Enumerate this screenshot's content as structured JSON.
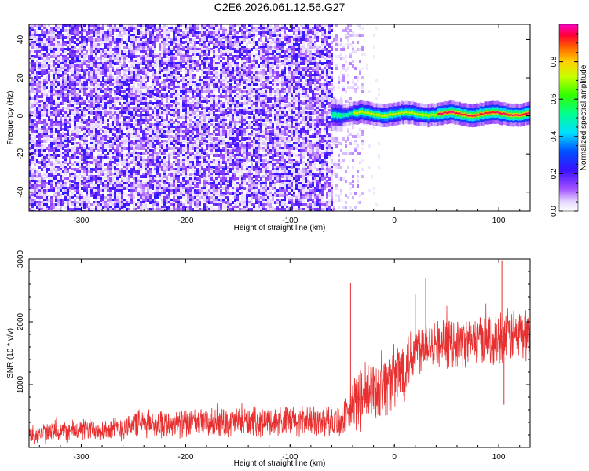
{
  "title": "C2E6.2026.061.12.56.G27",
  "chart_data": [
    {
      "type": "heatmap",
      "title": "C2E6.2026.061.12.56.G27",
      "xlabel": "Height of straight line (km)",
      "ylabel": "Frequency (Hz)",
      "xlim": [
        -350,
        130
      ],
      "ylim": [
        -50,
        48
      ],
      "x_ticks": [
        -300,
        -200,
        -100,
        0,
        100
      ],
      "y_ticks": [
        -40,
        -20,
        0,
        20,
        40
      ],
      "colorbar": {
        "label": "Normalized spectral amplitude",
        "range": [
          0,
          1
        ],
        "ticks": [
          "0.0",
          "0.2",
          "0.4",
          "0.6",
          "0.8"
        ],
        "colormap": "rainbow (white-violet-blue-cyan-green-yellow-red)"
      },
      "regions": [
        {
          "x_range": [
            -350,
            -60
          ],
          "description": "broadband noise, amplitude ~0.05-0.3 across all frequencies"
        },
        {
          "x_range": [
            -60,
            -30
          ],
          "description": "sparse noise, amplitude ~0.02-0.1"
        },
        {
          "x_range": [
            -60,
            130
          ],
          "center_frequency_hz": 1,
          "description": "narrow carrier line near 0-2 Hz, peak amplitude ~1.0"
        }
      ],
      "grid": false,
      "legend": "colorbar right"
    },
    {
      "type": "line",
      "xlabel": "Height of straight line (km)",
      "ylabel": "SNR (10 * v/v)",
      "xlim": [
        -350,
        130
      ],
      "ylim": [
        0,
        3000
      ],
      "x_ticks": [
        -300,
        -200,
        -100,
        0,
        100
      ],
      "y_ticks": [
        1000,
        2000,
        3000
      ],
      "color": "#e83030",
      "series": [
        {
          "x": [
            -350,
            -330,
            -300,
            -260,
            -250,
            -200,
            -150,
            -100,
            -60,
            -45,
            -40,
            -20,
            0,
            10,
            20,
            30,
            50,
            80,
            100,
            120,
            130
          ],
          "mean": [
            200,
            230,
            280,
            300,
            380,
            380,
            400,
            410,
            420,
            450,
            700,
            900,
            1100,
            1300,
            1550,
            1700,
            1650,
            1700,
            1750,
            1800,
            1800
          ],
          "spread": [
            160,
            170,
            180,
            200,
            230,
            230,
            240,
            250,
            260,
            300,
            500,
            550,
            550,
            550,
            500,
            400,
            400,
            400,
            450,
            450,
            450
          ]
        }
      ],
      "spikes": [
        {
          "x": -42,
          "y": 2620
        },
        {
          "x": 103,
          "y": 2980
        },
        {
          "x": 105,
          "y": 680
        },
        {
          "x": 30,
          "y": 2700
        },
        {
          "x": 20,
          "y": 2450
        }
      ],
      "grid": false
    }
  ]
}
